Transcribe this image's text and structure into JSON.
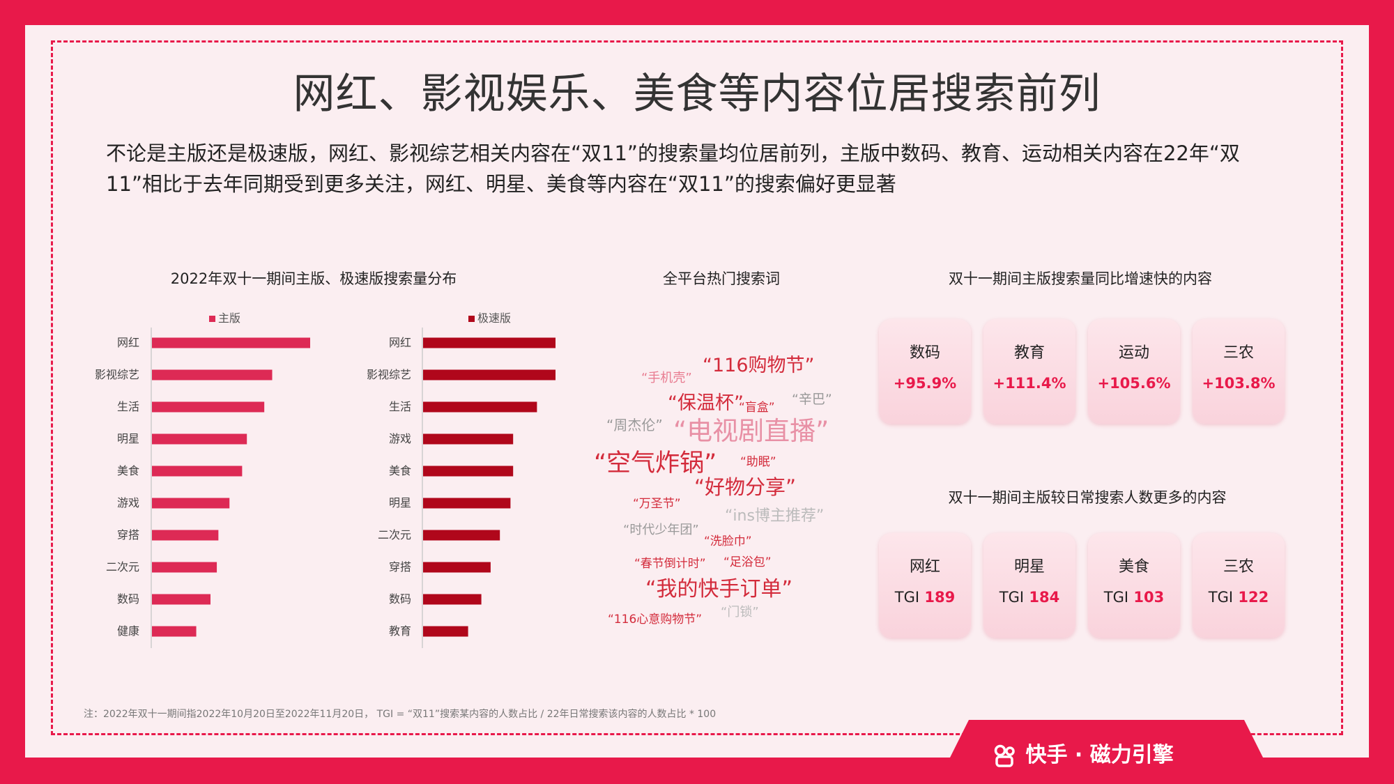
{
  "header": {
    "title": "网红、影视娱乐、美食等内容位居搜索前列",
    "intro": "不论是主版还是极速版，网红、影视综艺相关内容在“双11”的搜索量均位居前列，主版中数码、教育、运动相关内容在22年“双11”相比于去年同期受到更多关注，网红、明星、美食等内容在“双11”的搜索偏好更显著"
  },
  "section_titles": {
    "distribution": "2022年双十一期间主版、极速版搜索量分布",
    "hot_words": "全平台热门搜索词",
    "growth": "双十一期间主版搜索量同比增速快的内容",
    "preference": "双十一期间主版较日常搜索人数更多的内容"
  },
  "colors": {
    "accent": "#e8194a",
    "main_bar": "#dd2a55",
    "lite_bar": "#b0071b"
  },
  "chart_data": [
    {
      "type": "bar",
      "orientation": "horizontal",
      "legend": "主版",
      "color": "#dd2a55",
      "categories": [
        "网红",
        "影视综艺",
        "生活",
        "明星",
        "美食",
        "游戏",
        "穿搭",
        "二次元",
        "数码",
        "健康"
      ],
      "values": [
        100,
        76,
        71,
        60,
        57,
        49,
        42,
        41,
        37,
        28
      ],
      "value_note": "relative bar length, max = 100",
      "xlim": [
        0,
        100
      ]
    },
    {
      "type": "bar",
      "orientation": "horizontal",
      "legend": "极速版",
      "color": "#b0071b",
      "categories": [
        "网红",
        "影视综艺",
        "生活",
        "游戏",
        "美食",
        "明星",
        "二次元",
        "穿搭",
        "数码",
        "教育"
      ],
      "values": [
        100,
        100,
        86,
        68,
        68,
        66,
        58,
        51,
        44,
        34
      ],
      "value_note": "relative bar length, max = 100",
      "xlim": [
        0,
        100
      ]
    }
  ],
  "word_cloud": [
    {
      "text": "“116购物节”",
      "color": "#d32b3b",
      "size": "lg"
    },
    {
      "text": "“手机壳”",
      "color": "#e87b90",
      "size": "sm"
    },
    {
      "text": "“保温杯”",
      "color": "#d32b3b",
      "size": "md"
    },
    {
      "text": "“盲盒”",
      "color": "#d32b3b",
      "size": "xs"
    },
    {
      "text": "“辛巴”",
      "color": "#999999",
      "size": "sm"
    },
    {
      "text": "“周杰伦”",
      "color": "#999999",
      "size": "sm"
    },
    {
      "text": "“电视剧直播”",
      "color": "#e890a5",
      "size": "xl"
    },
    {
      "text": "“空气炸锅”",
      "color": "#d32b3b",
      "size": "xl"
    },
    {
      "text": "“助眠”",
      "color": "#d32b3b",
      "size": "xs"
    },
    {
      "text": "“好物分享”",
      "color": "#d32b3b",
      "size": "lg"
    },
    {
      "text": "“万圣节”",
      "color": "#d32b3b",
      "size": "xs"
    },
    {
      "text": "“ins博主推荐”",
      "color": "#bbbbbb",
      "size": "md"
    },
    {
      "text": "“时代少年团”",
      "color": "#999999",
      "size": "sm"
    },
    {
      "text": "“洗脸巾”",
      "color": "#d32b3b",
      "size": "xs"
    },
    {
      "text": "“春节倒计时”",
      "color": "#d32b3b",
      "size": "xs"
    },
    {
      "text": "“足浴包”",
      "color": "#d32b3b",
      "size": "xs"
    },
    {
      "text": "“我的快手订单”",
      "color": "#d32b3b",
      "size": "lg"
    },
    {
      "text": "“门锁”",
      "color": "#bbbbbb",
      "size": "sm"
    },
    {
      "text": "“116心意购物节”",
      "color": "#d32b3b",
      "size": "xs"
    }
  ],
  "growth_cards": [
    {
      "label": "数码",
      "value": "+95.9%"
    },
    {
      "label": "教育",
      "value": "+111.4%"
    },
    {
      "label": "运动",
      "value": "+105.6%"
    },
    {
      "label": "三农",
      "value": "+103.8%"
    }
  ],
  "tgi_cards": [
    {
      "label": "网红",
      "prefix": "TGI",
      "value": "189"
    },
    {
      "label": "明星",
      "prefix": "TGI",
      "value": "184"
    },
    {
      "label": "美食",
      "prefix": "TGI",
      "value": "103"
    },
    {
      "label": "三农",
      "prefix": "TGI",
      "value": "122"
    }
  ],
  "footnote": "注：2022年双十一期间指2022年10月20日至2022年11月20日， TGI = “双11”搜索某内容的人数占比 / 22年日常搜索该内容的人数占比 * 100",
  "footer": {
    "brand": "快手 · 磁力引擎"
  }
}
